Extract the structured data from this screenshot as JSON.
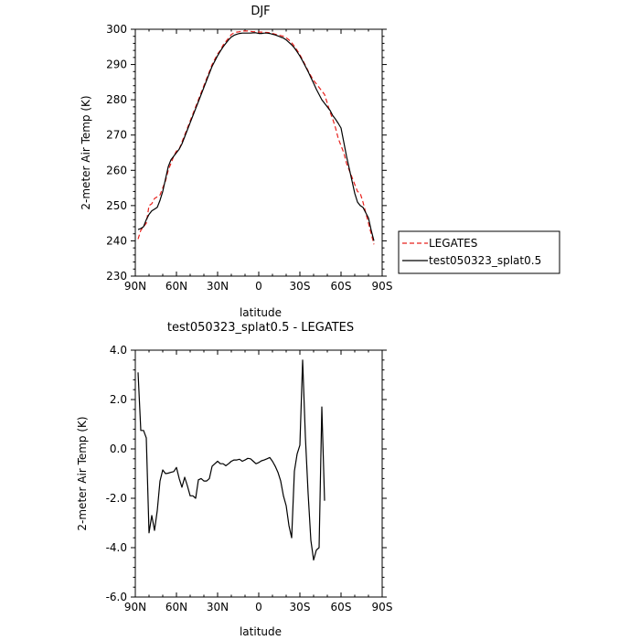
{
  "chart_data": [
    {
      "type": "line",
      "title": "DJF",
      "xlabel": "latitude",
      "ylabel": "2-meter Air Temp (K)",
      "xlim": [
        90,
        -90
      ],
      "ylim": [
        230,
        300
      ],
      "x_ticks": [
        90,
        60,
        30,
        0,
        -30,
        -60,
        -90
      ],
      "x_tick_labels": [
        "90N",
        "60N",
        "30N",
        "0",
        "30S",
        "60S",
        "90S"
      ],
      "y_ticks": [
        230,
        240,
        250,
        260,
        270,
        280,
        290,
        300
      ],
      "y_tick_labels": [
        "230",
        "240",
        "250",
        "260",
        "270",
        "280",
        "290",
        "300"
      ],
      "legend_position": "right-outside",
      "series": [
        {
          "name": "LEGATES",
          "color": "#e8201c",
          "dash": "dashed",
          "points": [
            [
              88,
              240.5
            ],
            [
              86,
              243
            ],
            [
              84,
              244
            ],
            [
              82,
              245
            ],
            [
              80,
              250
            ],
            [
              78,
              250.5
            ],
            [
              76,
              252
            ],
            [
              74,
              252.5
            ],
            [
              72,
              253
            ],
            [
              70,
              255
            ],
            [
              68,
              257
            ],
            [
              66,
              260
            ],
            [
              64,
              262
            ],
            [
              62,
              264
            ],
            [
              60,
              265.5
            ],
            [
              58,
              266
            ],
            [
              56,
              268
            ],
            [
              54,
              270
            ],
            [
              52,
              272
            ],
            [
              50,
              274
            ],
            [
              48,
              276
            ],
            [
              46,
              278
            ],
            [
              44,
              280
            ],
            [
              42,
              282
            ],
            [
              40,
              284
            ],
            [
              38,
              286
            ],
            [
              36,
              288
            ],
            [
              34,
              290
            ],
            [
              32,
              291.5
            ],
            [
              30,
              293
            ],
            [
              28,
              294
            ],
            [
              26,
              295.5
            ],
            [
              24,
              296.5
            ],
            [
              22,
              297.5
            ],
            [
              20,
              298.5
            ],
            [
              18,
              299
            ],
            [
              16,
              299.2
            ],
            [
              14,
              299.3
            ],
            [
              12,
              299.5
            ],
            [
              10,
              299.5
            ],
            [
              8,
              299.5
            ],
            [
              6,
              299.4
            ],
            [
              4,
              299.3
            ],
            [
              2,
              299.3
            ],
            [
              0,
              299.2
            ],
            [
              -2,
              299.2
            ],
            [
              -4,
              299.1
            ],
            [
              -6,
              299.1
            ],
            [
              -8,
              299
            ],
            [
              -10,
              298.8
            ],
            [
              -12,
              298.6
            ],
            [
              -14,
              298.4
            ],
            [
              -16,
              298.2
            ],
            [
              -18,
              298
            ],
            [
              -20,
              297.6
            ],
            [
              -22,
              297
            ],
            [
              -24,
              296.2
            ],
            [
              -26,
              295.2
            ],
            [
              -28,
              294
            ],
            [
              -30,
              292.8
            ],
            [
              -32,
              291.3
            ],
            [
              -34,
              289.8
            ],
            [
              -36,
              288.2
            ],
            [
              -38,
              286.8
            ],
            [
              -40,
              285.5
            ],
            [
              -42,
              284.5
            ],
            [
              -44,
              283.5
            ],
            [
              -46,
              282.5
            ],
            [
              -48,
              281.5
            ],
            [
              -50,
              279
            ],
            [
              -52,
              276.5
            ],
            [
              -54,
              274.5
            ],
            [
              -56,
              272
            ],
            [
              -58,
              269
            ],
            [
              -60,
              267
            ],
            [
              -62,
              265
            ],
            [
              -64,
              262
            ],
            [
              -66,
              260
            ],
            [
              -68,
              258
            ],
            [
              -70,
              256
            ],
            [
              -72,
              254
            ],
            [
              -74,
              253.5
            ],
            [
              -76,
              251
            ],
            [
              -78,
              248
            ],
            [
              -80,
              245
            ],
            [
              -82,
              242
            ],
            [
              -84,
              239
            ]
          ]
        },
        {
          "name": "test050323_splat0.5",
          "color": "#000000",
          "dash": "solid",
          "points": [
            [
              88,
              243.2
            ],
            [
              86,
              243.5
            ],
            [
              84,
              244
            ],
            [
              82,
              246
            ],
            [
              80,
              247.5
            ],
            [
              78,
              248.5
            ],
            [
              76,
              249
            ],
            [
              74,
              249.5
            ],
            [
              72,
              251.5
            ],
            [
              70,
              254
            ],
            [
              68,
              257.5
            ],
            [
              66,
              261
            ],
            [
              64,
              263
            ],
            [
              62,
              264
            ],
            [
              60,
              265
            ],
            [
              58,
              266
            ],
            [
              56,
              267.5
            ],
            [
              54,
              269.5
            ],
            [
              52,
              271.5
            ],
            [
              50,
              273.5
            ],
            [
              48,
              275.5
            ],
            [
              46,
              277.5
            ],
            [
              44,
              279.5
            ],
            [
              42,
              281.5
            ],
            [
              40,
              283.5
            ],
            [
              38,
              285.5
            ],
            [
              36,
              287.5
            ],
            [
              34,
              289.5
            ],
            [
              32,
              291
            ],
            [
              30,
              292.5
            ],
            [
              28,
              293.8
            ],
            [
              26,
              295
            ],
            [
              24,
              296
            ],
            [
              22,
              297
            ],
            [
              20,
              297.8
            ],
            [
              18,
              298.3
            ],
            [
              16,
              298.6
            ],
            [
              14,
              298.8
            ],
            [
              12,
              298.9
            ],
            [
              10,
              298.9
            ],
            [
              8,
              298.9
            ],
            [
              6,
              298.9
            ],
            [
              4,
              299
            ],
            [
              2,
              299
            ],
            [
              0,
              298.8
            ],
            [
              -2,
              298.8
            ],
            [
              -4,
              298.9
            ],
            [
              -6,
              298.9
            ],
            [
              -8,
              298.8
            ],
            [
              -10,
              298.6
            ],
            [
              -12,
              298.4
            ],
            [
              -14,
              298.1
            ],
            [
              -16,
              297.8
            ],
            [
              -18,
              297.5
            ],
            [
              -20,
              297
            ],
            [
              -22,
              296.3
            ],
            [
              -24,
              295.6
            ],
            [
              -26,
              294.7
            ],
            [
              -28,
              293.6
            ],
            [
              -30,
              292.4
            ],
            [
              -32,
              291
            ],
            [
              -34,
              289.5
            ],
            [
              -36,
              288
            ],
            [
              -38,
              286.3
            ],
            [
              -40,
              284.7
            ],
            [
              -42,
              283
            ],
            [
              -44,
              281.5
            ],
            [
              -46,
              280
            ],
            [
              -48,
              279
            ],
            [
              -50,
              278
            ],
            [
              -52,
              277
            ],
            [
              -54,
              275.5
            ],
            [
              -56,
              274.5
            ],
            [
              -58,
              273.3
            ],
            [
              -60,
              272
            ],
            [
              -62,
              268
            ],
            [
              -64,
              264
            ],
            [
              -66,
              260.5
            ],
            [
              -68,
              257
            ],
            [
              -70,
              253.5
            ],
            [
              -72,
              251
            ],
            [
              -74,
              250
            ],
            [
              -76,
              249.5
            ],
            [
              -78,
              248
            ],
            [
              -80,
              246.5
            ],
            [
              -82,
              243
            ],
            [
              -84,
              240
            ]
          ]
        }
      ]
    },
    {
      "type": "line",
      "title": "test050323_splat0.5 - LEGATES",
      "xlabel": "latitude",
      "ylabel": "2-meter Air Temp (K)",
      "xlim": [
        90,
        -90
      ],
      "ylim": [
        -6,
        4
      ],
      "x_ticks": [
        90,
        60,
        30,
        0,
        -30,
        -60,
        -90
      ],
      "x_tick_labels": [
        "90N",
        "60N",
        "30N",
        "0",
        "30S",
        "60S",
        "90S"
      ],
      "y_ticks": [
        -6,
        -4,
        -2,
        0,
        2,
        4
      ],
      "y_tick_labels": [
        "-6.0",
        "-4.0",
        "-2.0",
        "0.0",
        "2.0",
        "4.0"
      ],
      "series": [
        {
          "color": "#000000",
          "dash": "solid",
          "points": [
            [
              88,
              3.1
            ],
            [
              86,
              0.75
            ],
            [
              84,
              0.75
            ],
            [
              82,
              0.45
            ],
            [
              80,
              -3.4
            ],
            [
              78,
              -2.7
            ],
            [
              76,
              -3.3
            ],
            [
              74,
              -2.5
            ],
            [
              72,
              -1.3
            ],
            [
              70,
              -0.85
            ],
            [
              68,
              -1.0
            ],
            [
              66,
              -0.98
            ],
            [
              64,
              -0.95
            ],
            [
              62,
              -0.92
            ],
            [
              60,
              -0.75
            ],
            [
              58,
              -1.2
            ],
            [
              56,
              -1.55
            ],
            [
              54,
              -1.15
            ],
            [
              52,
              -1.5
            ],
            [
              50,
              -1.9
            ],
            [
              48,
              -1.9
            ],
            [
              46,
              -2.0
            ],
            [
              44,
              -1.25
            ],
            [
              42,
              -1.2
            ],
            [
              40,
              -1.3
            ],
            [
              38,
              -1.3
            ],
            [
              36,
              -1.2
            ],
            [
              34,
              -0.7
            ],
            [
              32,
              -0.6
            ],
            [
              30,
              -0.5
            ],
            [
              28,
              -0.6
            ],
            [
              26,
              -0.6
            ],
            [
              24,
              -0.68
            ],
            [
              22,
              -0.6
            ],
            [
              20,
              -0.5
            ],
            [
              18,
              -0.45
            ],
            [
              16,
              -0.45
            ],
            [
              14,
              -0.42
            ],
            [
              12,
              -0.5
            ],
            [
              10,
              -0.45
            ],
            [
              8,
              -0.38
            ],
            [
              6,
              -0.4
            ],
            [
              4,
              -0.5
            ],
            [
              2,
              -0.6
            ],
            [
              0,
              -0.55
            ],
            [
              -2,
              -0.48
            ],
            [
              -4,
              -0.45
            ],
            [
              -6,
              -0.4
            ],
            [
              -8,
              -0.35
            ],
            [
              -10,
              -0.5
            ],
            [
              -12,
              -0.7
            ],
            [
              -14,
              -0.95
            ],
            [
              -16,
              -1.3
            ],
            [
              -18,
              -1.9
            ],
            [
              -20,
              -2.3
            ],
            [
              -22,
              -3.1
            ],
            [
              -24,
              -3.6
            ],
            [
              -26,
              -0.9
            ],
            [
              -28,
              -0.2
            ],
            [
              -30,
              0.15
            ],
            [
              -32,
              3.6
            ],
            [
              -34,
              0.5
            ],
            [
              -36,
              -1.8
            ],
            [
              -38,
              -3.7
            ],
            [
              -40,
              -4.5
            ],
            [
              -42,
              -4.1
            ],
            [
              -44,
              -4.0
            ],
            [
              -46,
              1.7
            ],
            [
              -48,
              -2.1
            ]
          ]
        }
      ]
    }
  ]
}
